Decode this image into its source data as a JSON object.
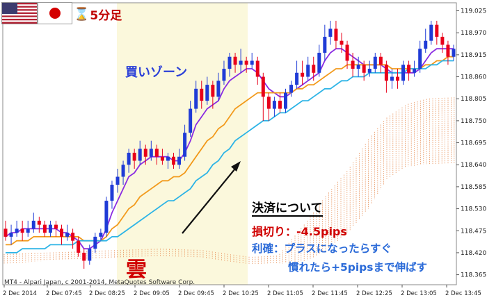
{
  "header": {
    "flags": [
      "us-flag-icon",
      "jp-flag-icon"
    ],
    "hourglass_icon": "hourglass-icon",
    "timeframe": "5分足"
  },
  "annotations": {
    "zone": "買いゾーン",
    "cloud": "雲",
    "note_title": "決済について",
    "stop_loss": "損切り：-4.5pips",
    "take_profit_1": "利確：プラスになったらすぐ",
    "take_profit_2": "慣れたら+5pipsまで伸ばす"
  },
  "footer": {
    "copyright": "MT4 - Alpari Japan, c 2001-2014, MetaQuotes Software Corp."
  },
  "colors": {
    "bull": "#1f3bd6",
    "bear": "#e8001a",
    "ema_fast": "#8a2be2",
    "ema_mid": "#f29a1c",
    "ema_slow": "#2db4e6",
    "zone_bg": "#fbf8dc",
    "cloud": "#e8925a"
  },
  "chart_data": {
    "type": "candlestick",
    "x_ticks": [
      "2 Dec 2014",
      "2 Dec 07:45",
      "2 Dec 08:25",
      "2 Dec 09:05",
      "2 Dec 09:45",
      "2 Dec 10:25",
      "2 Dec 11:05",
      "2 Dec 11:45",
      "2 Dec 12:25",
      "2 Dec 13:05",
      "2 Dec 13:45"
    ],
    "y_ticks": [
      "119.025",
      "118.970",
      "118.915",
      "118.860",
      "118.805",
      "118.750",
      "118.695",
      "118.640",
      "118.585",
      "118.530",
      "118.475",
      "118.420",
      "118.365"
    ],
    "ylim": [
      118.34,
      119.045
    ],
    "candles": [
      [
        118.48,
        118.46,
        118.5,
        118.45
      ],
      [
        118.46,
        118.47,
        118.49,
        118.44
      ],
      [
        118.47,
        118.48,
        118.5,
        118.46
      ],
      [
        118.48,
        118.47,
        118.5,
        118.45
      ],
      [
        118.47,
        118.48,
        118.5,
        118.46
      ],
      [
        118.48,
        118.5,
        118.52,
        118.47
      ],
      [
        118.5,
        118.49,
        118.51,
        118.47
      ],
      [
        118.49,
        118.47,
        118.5,
        118.46
      ],
      [
        118.47,
        118.49,
        118.5,
        118.46
      ],
      [
        118.49,
        118.48,
        118.5,
        118.46
      ],
      [
        118.48,
        118.46,
        118.49,
        118.44
      ],
      [
        118.46,
        118.47,
        118.49,
        118.45
      ],
      [
        118.47,
        118.45,
        118.48,
        118.43
      ],
      [
        118.45,
        118.42,
        118.46,
        118.41
      ],
      [
        118.42,
        118.4,
        118.43,
        118.38
      ],
      [
        118.4,
        118.43,
        118.44,
        118.39
      ],
      [
        118.43,
        118.46,
        118.47,
        118.42
      ],
      [
        118.46,
        118.47,
        118.48,
        118.45
      ],
      [
        118.47,
        118.55,
        118.56,
        118.46
      ],
      [
        118.55,
        118.59,
        118.6,
        118.53
      ],
      [
        118.59,
        118.61,
        118.63,
        118.57
      ],
      [
        118.61,
        118.64,
        118.65,
        118.59
      ],
      [
        118.64,
        118.67,
        118.68,
        118.62
      ],
      [
        118.67,
        118.65,
        118.68,
        118.63
      ],
      [
        118.65,
        118.68,
        118.7,
        118.64
      ],
      [
        118.68,
        118.66,
        118.69,
        118.64
      ],
      [
        118.66,
        118.68,
        118.7,
        118.65
      ],
      [
        118.68,
        118.66,
        118.69,
        118.64
      ],
      [
        118.66,
        118.65,
        118.68,
        118.64
      ],
      [
        118.65,
        118.66,
        118.67,
        118.63
      ],
      [
        118.66,
        118.64,
        118.67,
        118.63
      ],
      [
        118.64,
        118.66,
        118.68,
        118.63
      ],
      [
        118.66,
        118.72,
        118.74,
        118.65
      ],
      [
        118.72,
        118.78,
        118.8,
        118.71
      ],
      [
        118.78,
        118.83,
        118.85,
        118.77
      ],
      [
        118.83,
        118.8,
        118.85,
        118.78
      ],
      [
        118.8,
        118.84,
        118.86,
        118.79
      ],
      [
        118.84,
        118.81,
        118.85,
        118.78
      ],
      [
        118.81,
        118.85,
        118.87,
        118.8
      ],
      [
        118.85,
        118.88,
        118.9,
        118.84
      ],
      [
        118.88,
        118.91,
        118.92,
        118.86
      ],
      [
        118.91,
        118.89,
        118.92,
        118.87
      ],
      [
        118.89,
        118.9,
        118.93,
        118.87
      ],
      [
        118.9,
        118.89,
        118.91,
        118.87
      ],
      [
        118.89,
        118.9,
        118.92,
        118.88
      ],
      [
        118.9,
        118.86,
        118.91,
        118.84
      ],
      [
        118.86,
        118.81,
        118.87,
        118.75
      ],
      [
        118.81,
        118.78,
        118.82,
        118.75
      ],
      [
        118.78,
        118.8,
        118.81,
        118.76
      ],
      [
        118.8,
        118.78,
        118.82,
        118.77
      ],
      [
        118.78,
        118.82,
        118.83,
        118.77
      ],
      [
        118.82,
        118.84,
        118.85,
        118.81
      ],
      [
        118.84,
        118.87,
        118.9,
        118.83
      ],
      [
        118.87,
        118.86,
        118.9,
        118.84
      ],
      [
        118.86,
        118.89,
        118.91,
        118.85
      ],
      [
        118.89,
        118.87,
        118.91,
        118.85
      ],
      [
        118.87,
        118.92,
        118.94,
        118.86
      ],
      [
        118.92,
        118.96,
        118.99,
        118.9
      ],
      [
        118.96,
        118.98,
        119.0,
        118.94
      ],
      [
        118.98,
        118.95,
        119.0,
        118.93
      ],
      [
        118.95,
        118.94,
        118.97,
        118.92
      ],
      [
        118.94,
        118.9,
        118.95,
        118.88
      ],
      [
        118.9,
        118.88,
        118.92,
        118.86
      ],
      [
        118.88,
        118.89,
        118.91,
        118.86
      ],
      [
        118.89,
        118.87,
        118.9,
        118.85
      ],
      [
        118.87,
        118.88,
        118.9,
        118.86
      ],
      [
        118.88,
        118.91,
        118.92,
        118.87
      ],
      [
        118.91,
        118.89,
        118.92,
        118.87
      ],
      [
        118.89,
        118.85,
        118.9,
        118.82
      ],
      [
        118.85,
        118.86,
        118.88,
        118.83
      ],
      [
        118.86,
        118.85,
        118.88,
        118.83
      ],
      [
        118.85,
        118.89,
        118.9,
        118.84
      ],
      [
        118.89,
        118.87,
        118.9,
        118.85
      ],
      [
        118.87,
        118.88,
        118.9,
        118.86
      ],
      [
        118.88,
        118.93,
        118.95,
        118.87
      ],
      [
        118.93,
        118.95,
        118.98,
        118.92
      ],
      [
        118.95,
        118.99,
        119.0,
        118.94
      ],
      [
        118.99,
        118.96,
        119.0,
        118.94
      ],
      [
        118.96,
        118.94,
        118.97,
        118.92
      ],
      [
        118.94,
        118.91,
        118.95,
        118.89
      ],
      [
        118.91,
        118.93,
        118.94,
        118.9
      ]
    ],
    "series": [
      {
        "color_key": "ema_fast",
        "values": [
          118.46,
          118.47,
          118.47,
          118.48,
          118.48,
          118.48,
          118.48,
          118.48,
          118.48,
          118.48,
          118.47,
          118.47,
          118.46,
          118.45,
          118.43,
          118.43,
          118.44,
          118.45,
          118.48,
          118.52,
          118.55,
          118.58,
          118.61,
          118.62,
          118.64,
          118.65,
          118.66,
          118.66,
          118.66,
          118.66,
          118.65,
          118.65,
          118.67,
          118.7,
          118.74,
          118.76,
          118.78,
          118.79,
          118.8,
          118.83,
          118.85,
          118.86,
          118.87,
          118.88,
          118.88,
          118.87,
          118.85,
          118.83,
          118.82,
          118.81,
          118.81,
          118.82,
          118.83,
          118.84,
          118.85,
          118.86,
          118.87,
          118.9,
          118.92,
          118.93,
          118.93,
          118.92,
          118.91,
          118.9,
          118.89,
          118.89,
          118.89,
          118.89,
          118.88,
          118.87,
          118.87,
          118.87,
          118.87,
          118.87,
          118.88,
          118.9,
          118.92,
          118.93,
          118.93,
          118.93,
          118.93
        ]
      },
      {
        "color_key": "ema_mid",
        "values": [
          118.44,
          118.44,
          118.45,
          118.45,
          118.45,
          118.46,
          118.46,
          118.46,
          118.46,
          118.46,
          118.46,
          118.46,
          118.46,
          118.46,
          118.45,
          118.45,
          118.45,
          118.45,
          118.46,
          118.48,
          118.49,
          118.51,
          118.53,
          118.54,
          118.56,
          118.57,
          118.58,
          118.59,
          118.6,
          118.6,
          118.61,
          118.61,
          118.62,
          118.64,
          118.66,
          118.68,
          118.7,
          118.71,
          118.73,
          118.74,
          118.76,
          118.78,
          118.79,
          118.8,
          118.81,
          118.82,
          118.82,
          118.82,
          118.82,
          118.82,
          118.82,
          118.82,
          118.83,
          118.83,
          118.84,
          118.84,
          118.85,
          118.86,
          118.87,
          118.88,
          118.88,
          118.89,
          118.89,
          118.89,
          118.89,
          118.89,
          118.89,
          118.89,
          118.89,
          118.88,
          118.88,
          118.88,
          118.88,
          118.88,
          118.88,
          118.89,
          118.89,
          118.9,
          118.9,
          118.91,
          118.91
        ]
      },
      {
        "color_key": "ema_slow",
        "values": [
          118.42,
          118.42,
          118.42,
          118.43,
          118.43,
          118.43,
          118.43,
          118.43,
          118.44,
          118.44,
          118.44,
          118.44,
          118.44,
          118.45,
          118.45,
          118.45,
          118.45,
          118.45,
          118.45,
          118.46,
          118.46,
          118.47,
          118.48,
          118.49,
          118.5,
          118.51,
          118.52,
          118.53,
          118.54,
          118.55,
          118.55,
          118.56,
          118.57,
          118.58,
          118.6,
          118.61,
          118.62,
          118.64,
          118.65,
          118.67,
          118.68,
          118.7,
          118.71,
          118.72,
          118.73,
          118.74,
          118.75,
          118.75,
          118.76,
          118.77,
          118.77,
          118.78,
          118.79,
          118.8,
          118.8,
          118.81,
          118.82,
          118.83,
          118.83,
          118.84,
          118.85,
          118.85,
          118.86,
          118.86,
          118.86,
          118.87,
          118.87,
          118.87,
          118.87,
          118.87,
          118.87,
          118.87,
          118.88,
          118.88,
          118.88,
          118.88,
          118.89,
          118.89,
          118.9,
          118.9,
          118.9
        ]
      }
    ]
  }
}
